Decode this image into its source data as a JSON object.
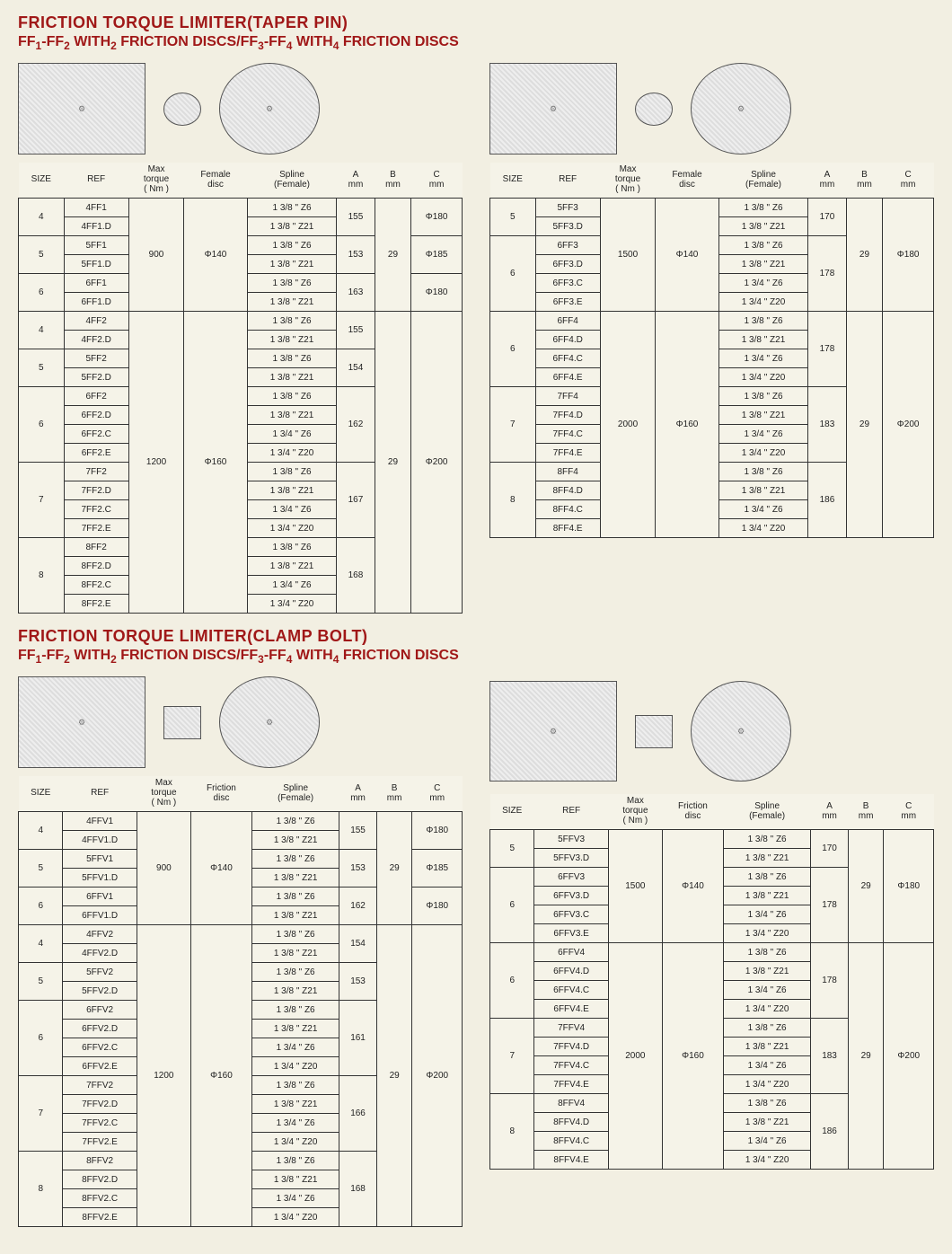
{
  "section1": {
    "title_main": "FRICTION TORQUE LIMITER(TAPER PIN)",
    "title_sub_a": "FF",
    "title_sub_b": "-FF",
    "title_sub_c": " WITH",
    "title_sub_d": " FRICTION DISCS/FF",
    "title_sub_e": "-FF",
    "title_sub_f": " WITH",
    "title_sub_g": " FRICTION DISCS",
    "n1": "1",
    "n2": "2",
    "n2b": "2",
    "n3": "3",
    "n4": "4",
    "n4b": "4",
    "headers": {
      "size": "SIZE",
      "ref": "REF",
      "torque": "Max\ntorque\n( Nm )",
      "disc": "Female\ndisc",
      "spline": "Spline\n(Female)",
      "a": "A\nmm",
      "b": "B\nmm",
      "c": "C\nmm"
    },
    "left": {
      "g1": {
        "size": "4",
        "refs": [
          "4FF1",
          "4FF1.D"
        ],
        "splines": [
          "1 3/8 \" Z6",
          "1 3/8 \" Z21"
        ],
        "a": "155",
        "c": "Φ180"
      },
      "g2": {
        "size": "5",
        "refs": [
          "5FF1",
          "5FF1.D"
        ],
        "splines": [
          "1 3/8 \" Z6",
          "1 3/8 \" Z21"
        ],
        "a": "153",
        "c": "Φ185"
      },
      "g3": {
        "size": "6",
        "refs": [
          "6FF1",
          "6FF1.D"
        ],
        "splines": [
          "1 3/8 \" Z6",
          "1 3/8 \" Z21"
        ],
        "a": "163",
        "c": "Φ180"
      },
      "torque1": "900",
      "disc1": "Φ140",
      "b1": "29",
      "g4": {
        "size": "4",
        "refs": [
          "4FF2",
          "4FF2.D"
        ],
        "splines": [
          "1 3/8 \" Z6",
          "1 3/8 \" Z21"
        ],
        "a": "155"
      },
      "g5": {
        "size": "5",
        "refs": [
          "5FF2",
          "5FF2.D"
        ],
        "splines": [
          "1 3/8 \" Z6",
          "1 3/8 \" Z21"
        ],
        "a": "154"
      },
      "g6": {
        "size": "6",
        "refs": [
          "6FF2",
          "6FF2.D",
          "6FF2.C",
          "6FF2.E"
        ],
        "splines": [
          "1 3/8 \" Z6",
          "1 3/8 \" Z21",
          "1 3/4 \" Z6",
          "1 3/4 \" Z20"
        ],
        "a": "162"
      },
      "g7": {
        "size": "7",
        "refs": [
          "7FF2",
          "7FF2.D",
          "7FF2.C",
          "7FF2.E"
        ],
        "splines": [
          "1 3/8 \" Z6",
          "1 3/8 \" Z21",
          "1 3/4 \" Z6",
          "1 3/4 \" Z20"
        ],
        "a": "167"
      },
      "g8": {
        "size": "8",
        "refs": [
          "8FF2",
          "8FF2.D",
          "8FF2.C",
          "8FF2.E"
        ],
        "splines": [
          "1 3/8 \" Z6",
          "1 3/8 \" Z21",
          "1 3/4 \" Z6",
          "1 3/4 \" Z20"
        ],
        "a": "168"
      },
      "torque2": "1200",
      "disc2": "Φ160",
      "b2": "29",
      "c2": "Φ200"
    },
    "right": {
      "g1": {
        "size": "5",
        "refs": [
          "5FF3",
          "5FF3.D"
        ],
        "splines": [
          "1 3/8 \" Z6",
          "1 3/8 \" Z21"
        ],
        "a": "170"
      },
      "g2": {
        "size": "6",
        "refs": [
          "6FF3",
          "6FF3.D",
          "6FF3.C",
          "6FF3.E"
        ],
        "splines": [
          "1 3/8 \" Z6",
          "1 3/8 \" Z21",
          "1 3/4 \" Z6",
          "1 3/4 \" Z20"
        ],
        "a": "178"
      },
      "torque1": "1500",
      "disc1": "Φ140",
      "b1": "29",
      "c1": "Φ180",
      "g3": {
        "size": "6",
        "refs": [
          "6FF4",
          "6FF4.D",
          "6FF4.C",
          "6FF4.E"
        ],
        "splines": [
          "1 3/8 \" Z6",
          "1 3/8 \" Z21",
          "1 3/4 \" Z6",
          "1 3/4 \" Z20"
        ],
        "a": "178"
      },
      "g4": {
        "size": "7",
        "refs": [
          "7FF4",
          "7FF4.D",
          "7FF4.C",
          "7FF4.E"
        ],
        "splines": [
          "1 3/8 \" Z6",
          "1 3/8 \" Z21",
          "1 3/4 \" Z6",
          "1 3/4 \" Z20"
        ],
        "a": "183"
      },
      "g5": {
        "size": "8",
        "refs": [
          "8FF4",
          "8FF4.D",
          "8FF4.C",
          "8FF4.E"
        ],
        "splines": [
          "1 3/8 \" Z6",
          "1 3/8 \" Z21",
          "1 3/4 \" Z6",
          "1 3/4 \" Z20"
        ],
        "a": "186"
      },
      "torque2": "2000",
      "disc2": "Φ160",
      "b2": "29",
      "c2": "Φ200"
    }
  },
  "section2": {
    "title_main": "FRICTION TORQUE LIMITER(CLAMP BOLT)",
    "headers": {
      "size": "SIZE",
      "ref": "REF",
      "torque": "Max\ntorque\n( Nm )",
      "disc": "Friction\ndisc",
      "spline": "Spline\n(Female)",
      "a": "A\nmm",
      "b": "B\nmm",
      "c": "C\nmm"
    },
    "left": {
      "g1": {
        "size": "4",
        "refs": [
          "4FFV1",
          "4FFV1.D"
        ],
        "splines": [
          "1 3/8 \" Z6",
          "1 3/8 \" Z21"
        ],
        "a": "155",
        "c": "Φ180"
      },
      "g2": {
        "size": "5",
        "refs": [
          "5FFV1",
          "5FFV1.D"
        ],
        "splines": [
          "1 3/8 \" Z6",
          "1 3/8 \" Z21"
        ],
        "a": "153",
        "c": "Φ185"
      },
      "g3": {
        "size": "6",
        "refs": [
          "6FFV1",
          "6FFV1.D"
        ],
        "splines": [
          "1 3/8 \" Z6",
          "1 3/8 \" Z21"
        ],
        "a": "162",
        "c": "Φ180"
      },
      "torque1": "900",
      "disc1": "Φ140",
      "b1": "29",
      "g4": {
        "size": "4",
        "refs": [
          "4FFV2",
          "4FFV2.D"
        ],
        "splines": [
          "1 3/8 \" Z6",
          "1 3/8 \" Z21"
        ],
        "a": "154"
      },
      "g5": {
        "size": "5",
        "refs": [
          "5FFV2",
          "5FFV2.D"
        ],
        "splines": [
          "1 3/8 \" Z6",
          "1 3/8 \" Z21"
        ],
        "a": "153"
      },
      "g6": {
        "size": "6",
        "refs": [
          "6FFV2",
          "6FFV2.D",
          "6FFV2.C",
          "6FFV2.E"
        ],
        "splines": [
          "1 3/8 \" Z6",
          "1 3/8 \" Z21",
          "1 3/4 \" Z6",
          "1 3/4 \" Z20"
        ],
        "a": "161"
      },
      "g7": {
        "size": "7",
        "refs": [
          "7FFV2",
          "7FFV2.D",
          "7FFV2.C",
          "7FFV2.E"
        ],
        "splines": [
          "1 3/8 \" Z6",
          "1 3/8 \" Z21",
          "1 3/4 \" Z6",
          "1 3/4 \" Z20"
        ],
        "a": "166"
      },
      "g8": {
        "size": "8",
        "refs": [
          "8FFV2",
          "8FFV2.D",
          "8FFV2.C",
          "8FFV2.E"
        ],
        "splines": [
          "1 3/8 \" Z6",
          "1 3/8 \" Z21",
          "1 3/4 \" Z6",
          "1 3/4 \" Z20"
        ],
        "a": "168"
      },
      "torque2": "1200",
      "disc2": "Φ160",
      "b2": "29",
      "c2": "Φ200"
    },
    "right": {
      "g1": {
        "size": "5",
        "refs": [
          "5FFV3",
          "5FFV3.D"
        ],
        "splines": [
          "1 3/8 \" Z6",
          "1 3/8 \" Z21"
        ],
        "a": "170"
      },
      "g2": {
        "size": "6",
        "refs": [
          "6FFV3",
          "6FFV3.D",
          "6FFV3.C",
          "6FFV3.E"
        ],
        "splines": [
          "1 3/8 \" Z6",
          "1 3/8 \" Z21",
          "1 3/4 \" Z6",
          "1 3/4 \" Z20"
        ],
        "a": "178"
      },
      "torque1": "1500",
      "disc1": "Φ140",
      "b1": "29",
      "c1": "Φ180",
      "g3": {
        "size": "6",
        "refs": [
          "6FFV4",
          "6FFV4.D",
          "6FFV4.C",
          "6FFV4.E"
        ],
        "splines": [
          "1 3/8 \" Z6",
          "1 3/8 \" Z21",
          "1 3/4 \" Z6",
          "1 3/4 \" Z20"
        ],
        "a": "178"
      },
      "g4": {
        "size": "7",
        "refs": [
          "7FFV4",
          "7FFV4.D",
          "7FFV4.C",
          "7FFV4.E"
        ],
        "splines": [
          "1 3/8 \" Z6",
          "1 3/8 \" Z21",
          "1 3/4 \" Z6",
          "1 3/4 \" Z20"
        ],
        "a": "183"
      },
      "g5": {
        "size": "8",
        "refs": [
          "8FFV4",
          "8FFV4.D",
          "8FFV4.C",
          "8FFV4.E"
        ],
        "splines": [
          "1 3/8 \" Z6",
          "1 3/8 \" Z21",
          "1 3/4 \" Z6",
          "1 3/4 \" Z20"
        ],
        "a": "186"
      },
      "torque2": "2000",
      "disc2": "Φ160",
      "b2": "29",
      "c2": "Φ200"
    }
  },
  "colors": {
    "title": "#a01818",
    "border": "#333",
    "bg": "#f2efe2"
  }
}
